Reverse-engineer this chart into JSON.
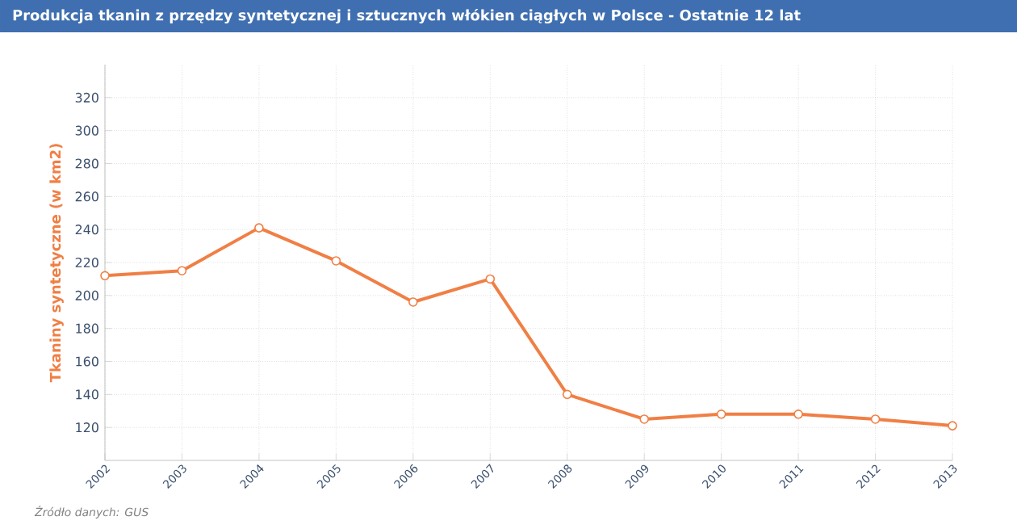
{
  "chart_data": {
    "type": "line",
    "title": "Produkcja tkanin z przędzy syntetycznej i sztucznych włókien ciągłych w Polsce - Ostatnie 12 lat",
    "ylabel": "Tkaniny syntetyczne (w km2)",
    "x": [
      2002,
      2003,
      2004,
      2005,
      2006,
      2007,
      2008,
      2009,
      2010,
      2011,
      2012,
      2013
    ],
    "series": [
      {
        "color": "#f07f45",
        "values": [
          212,
          215,
          241,
          221,
          196,
          210,
          140,
          125,
          128,
          128,
          125,
          121
        ]
      }
    ],
    "xlim": [
      2002,
      2013
    ],
    "xticks": [
      2002,
      2003,
      2004,
      2005,
      2006,
      2007,
      2008,
      2009,
      2010,
      2011,
      2012,
      2013
    ],
    "ylim": [
      100,
      340
    ],
    "yticks": [
      120,
      140,
      160,
      180,
      200,
      220,
      240,
      260,
      280,
      300,
      320
    ],
    "grid": true,
    "marker": "circle",
    "line_style": "solid",
    "annotations": [
      "Źródło danych:  GUS"
    ]
  }
}
